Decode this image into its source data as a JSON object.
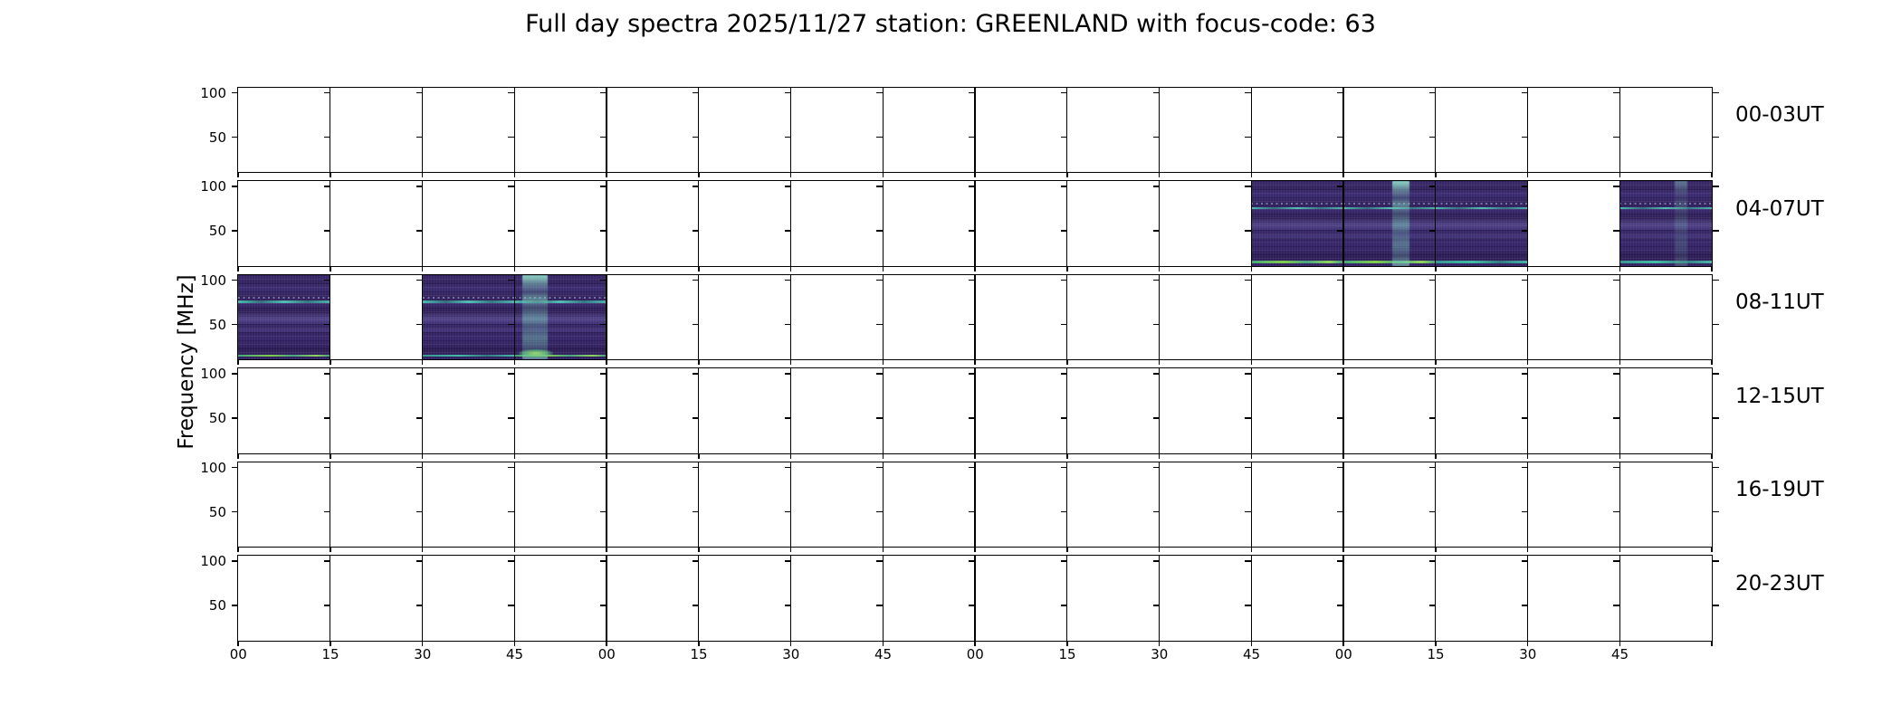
{
  "chart_data": {
    "type": "heatmap",
    "title": "Full day spectra 2025/11/27 station: GREENLAND with focus-code: 63",
    "station": "GREENLAND",
    "date": "2025/11/27",
    "focus_code": "63",
    "ylabel": "Frequency [MHz]",
    "y_tick_labels": [
      "100",
      "50"
    ],
    "x_tick_labels": [
      "00",
      "15",
      "30",
      "45",
      "00",
      "15",
      "30",
      "45",
      "00",
      "15",
      "30",
      "45",
      "00",
      "15",
      "30",
      "45"
    ],
    "segments_per_row": 16,
    "segment_minutes": 15,
    "legend_position": "none",
    "grid": false,
    "rows": [
      {
        "label": "00-03UT",
        "filled_segments": []
      },
      {
        "label": "04-07UT",
        "filled_segments": [
          {
            "col": 11,
            "time": "06:45",
            "bottom_bright": true
          },
          {
            "col": 12,
            "time": "07:00",
            "bottom_bright": true,
            "vertical_band": {
              "x": 0.53,
              "w": 0.19,
              "strength": "strong"
            }
          },
          {
            "col": 13,
            "time": "07:15"
          },
          {
            "col": 15,
            "time": "07:45",
            "vertical_band": {
              "x": 0.6,
              "w": 0.13,
              "strength": "faint"
            }
          }
        ]
      },
      {
        "label": "08-11UT",
        "filled_segments": [
          {
            "col": 0,
            "time": "08:00",
            "bottom_bright": true
          },
          {
            "col": 2,
            "time": "08:30"
          },
          {
            "col": 3,
            "time": "08:45",
            "bottom_bright": true,
            "vertical_band": {
              "x": 0.09,
              "w": 0.27,
              "strength": "strong"
            },
            "blob": true
          }
        ]
      },
      {
        "label": "12-15UT",
        "filled_segments": []
      },
      {
        "label": "16-19UT",
        "filled_segments": []
      },
      {
        "label": "20-23UT",
        "filled_segments": []
      }
    ],
    "colors": {
      "background": "#ffffff",
      "axis": "#000000",
      "tile_base": "#38276a",
      "tile_dark": "#2e1e55",
      "tile_light": "#3c2d72",
      "streak_teal": "#48c4b4",
      "bright_green": "#86d549",
      "band_teal": "#91deca"
    }
  }
}
